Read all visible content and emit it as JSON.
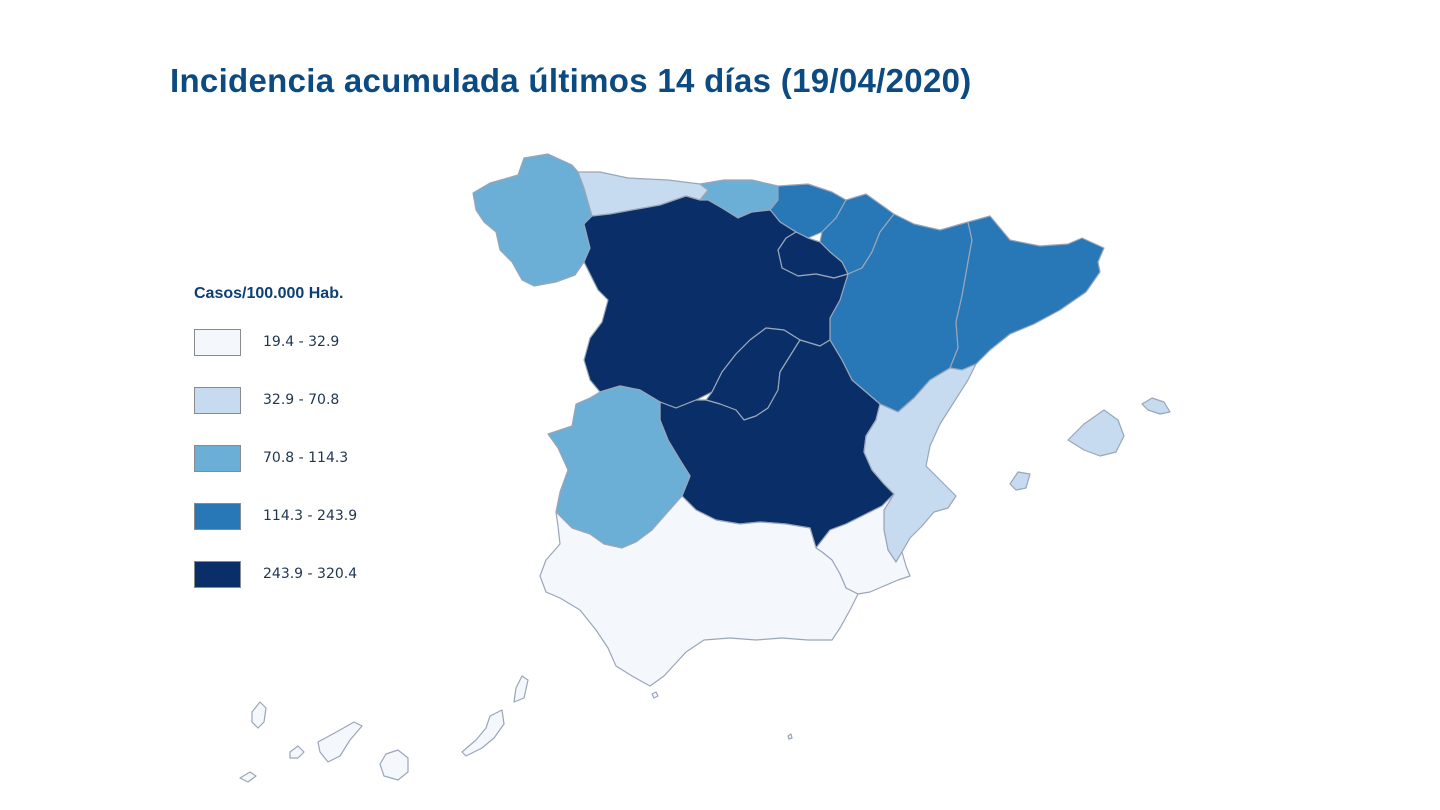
{
  "title": "Incidencia acumulada últimos 14 días (19/04/2020)",
  "legend": {
    "title": "Casos/100.000 Hab.",
    "items": [
      {
        "label": "19.4 - 32.9",
        "color": "#f4f8fd"
      },
      {
        "label": "32.9 - 70.8",
        "color": "#c6dbef"
      },
      {
        "label": "70.8 - 114.3",
        "color": "#6baed6"
      },
      {
        "label": "114.3 - 243.9",
        "color": "#2878b8"
      },
      {
        "label": "243.9 - 320.4",
        "color": "#0a2f68"
      }
    ]
  },
  "regions": [
    {
      "name": "galicia",
      "class": 2
    },
    {
      "name": "asturias",
      "class": 1
    },
    {
      "name": "cantabria",
      "class": 2
    },
    {
      "name": "pais-vasco",
      "class": 3
    },
    {
      "name": "navarra",
      "class": 3
    },
    {
      "name": "la-rioja",
      "class": 4
    },
    {
      "name": "aragon",
      "class": 3
    },
    {
      "name": "cataluna",
      "class": 3
    },
    {
      "name": "castilla-y-leon",
      "class": 4
    },
    {
      "name": "madrid",
      "class": 4
    },
    {
      "name": "castilla-la-mancha",
      "class": 4
    },
    {
      "name": "extremadura",
      "class": 2
    },
    {
      "name": "comunidad-valenciana",
      "class": 1
    },
    {
      "name": "murcia",
      "class": 0
    },
    {
      "name": "andalucia",
      "class": 0
    },
    {
      "name": "islas-baleares",
      "class": 1
    },
    {
      "name": "islas-canarias",
      "class": 0
    },
    {
      "name": "ceuta",
      "class": 0
    },
    {
      "name": "melilla",
      "class": 0
    }
  ]
}
